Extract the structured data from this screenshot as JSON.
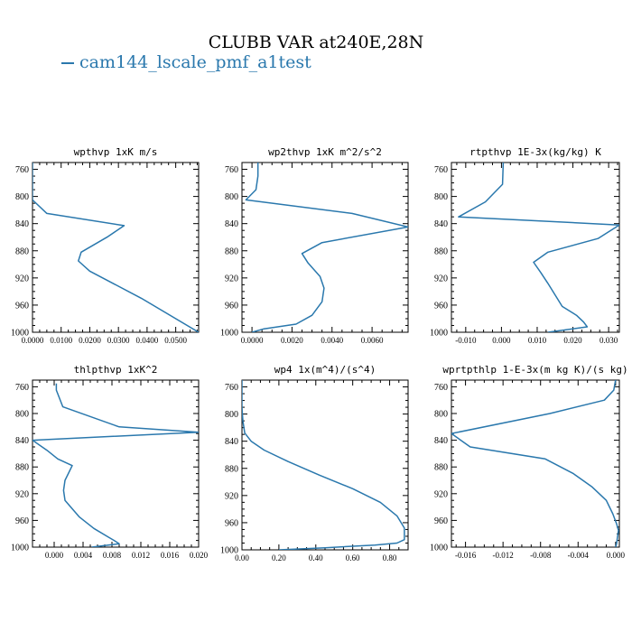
{
  "page": {
    "title": "CLUBB VAR at240E,28N",
    "legend_label": "cam144_lscale_pmf_a1test",
    "line_color": "#2a78ad"
  },
  "chart_data": [
    {
      "type": "line",
      "title": "wpthvp  1xK m/s",
      "xlim": [
        0,
        0.058
      ],
      "ylim": [
        1000,
        750
      ],
      "xticks": [
        "0.0000",
        "0.0100",
        "0.0200",
        "0.0300",
        "0.0400",
        "0.0500"
      ],
      "xtick_values": [
        0,
        0.01,
        0.02,
        0.03,
        0.04,
        0.05
      ],
      "yticks": [
        "760",
        "800",
        "840",
        "880",
        "920",
        "960",
        "1000"
      ],
      "ytick_values": [
        760,
        800,
        840,
        880,
        920,
        960,
        1000
      ],
      "series": [
        {
          "x": [
            0,
            0,
            0,
            0.005,
            0.032,
            0.026,
            0.017,
            0.016,
            0.02,
            0.038,
            0.058
          ],
          "y": [
            750,
            780,
            805,
            825,
            843,
            860,
            882,
            895,
            910,
            950,
            1000
          ]
        }
      ]
    },
    {
      "type": "line",
      "title": "wp2thvp  1xK m^2/s^2",
      "xlim": [
        -0.0005,
        0.0078
      ],
      "ylim": [
        1000,
        750
      ],
      "xticks": [
        "0.0000",
        "0.0020",
        "0.0040",
        "0.0060"
      ],
      "xtick_values": [
        0,
        0.002,
        0.004,
        0.006
      ],
      "yticks": [
        "760",
        "800",
        "840",
        "880",
        "920",
        "960",
        "1000"
      ],
      "ytick_values": [
        760,
        800,
        840,
        880,
        920,
        960,
        1000
      ],
      "series": [
        {
          "x": [
            0.0003,
            0.0003,
            0.0002,
            -0.0003,
            0.005,
            0.0078,
            0.0035,
            0.0025,
            0.0028,
            0.0034,
            0.0036,
            0.0035,
            0.003,
            0.0022,
            0.0006,
            0
          ],
          "y": [
            750,
            770,
            790,
            805,
            825,
            845,
            868,
            884,
            898,
            918,
            935,
            955,
            975,
            988,
            995,
            1000
          ]
        }
      ]
    },
    {
      "type": "line",
      "title": "rtpthvp  1E-3x(kg/kg) K",
      "xlim": [
        -0.014,
        0.033
      ],
      "ylim": [
        1000,
        750
      ],
      "xticks": [
        "-0.010",
        "0.000",
        "0.010",
        "0.020",
        "0.030"
      ],
      "xtick_values": [
        -0.01,
        0,
        0.01,
        0.02,
        0.03
      ],
      "yticks": [
        "760",
        "800",
        "840",
        "880",
        "920",
        "960",
        "1000"
      ],
      "ytick_values": [
        760,
        800,
        840,
        880,
        920,
        960,
        1000
      ],
      "series": [
        {
          "x": [
            0.0005,
            0.0003,
            -0.0045,
            -0.012,
            0.033,
            0.027,
            0.013,
            0.009,
            0.011,
            0.013,
            0.015,
            0.017,
            0.021,
            0.023,
            0.024,
            0.013
          ],
          "y": [
            750,
            782,
            808,
            830,
            842,
            862,
            882,
            897,
            912,
            928,
            945,
            962,
            975,
            985,
            992,
            1000
          ]
        }
      ]
    },
    {
      "type": "line",
      "title": "thlpthvp  1xK^2",
      "xlim": [
        -0.003,
        0.02
      ],
      "ylim": [
        1000,
        750
      ],
      "xticks": [
        "0.000",
        "0.004",
        "0.008",
        "0.012",
        "0.016",
        "0.020"
      ],
      "xtick_values": [
        0,
        0.004,
        0.008,
        0.012,
        0.016,
        0.02
      ],
      "yticks": [
        "760",
        "800",
        "840",
        "880",
        "920",
        "960",
        "1000"
      ],
      "ytick_values": [
        760,
        800,
        840,
        880,
        920,
        960,
        1000
      ],
      "series": [
        {
          "x": [
            0.0003,
            0.0003,
            0.0012,
            0.009,
            0.02,
            -0.003,
            -0.001,
            0.0005,
            0.0025,
            0.0015,
            0.0013,
            0.0015,
            0.0035,
            0.0055,
            0.0075,
            0.0083,
            0.009,
            0.0052
          ],
          "y": [
            755,
            765,
            790,
            820,
            828,
            840,
            855,
            868,
            878,
            900,
            915,
            930,
            955,
            972,
            985,
            990,
            995,
            1000
          ]
        }
      ]
    },
    {
      "type": "line",
      "title": "wp4  1x(m^4)/(s^4)",
      "xlim": [
        0,
        0.9
      ],
      "ylim": [
        1000,
        750
      ],
      "xticks": [
        "0.00",
        "0.20",
        "0.40",
        "0.60",
        "0.80"
      ],
      "xtick_values": [
        0,
        0.2,
        0.4,
        0.6,
        0.8
      ],
      "yticks": [
        "760",
        "800",
        "840",
        "880",
        "920",
        "960",
        "1000"
      ],
      "ytick_values": [
        760,
        800,
        840,
        880,
        920,
        960,
        1000
      ],
      "series": [
        {
          "x": [
            0,
            0,
            0.005,
            0.015,
            0.05,
            0.12,
            0.25,
            0.42,
            0.6,
            0.75,
            0.84,
            0.88,
            0.88,
            0.84,
            0.72,
            0.45,
            0.2
          ],
          "y": [
            750,
            790,
            810,
            828,
            840,
            853,
            870,
            890,
            910,
            930,
            950,
            968,
            985,
            990,
            993,
            997,
            1000
          ]
        }
      ]
    },
    {
      "type": "line",
      "title": "wprtpthlp  1-E-3x(m kg K)/(s kg)",
      "xlim": [
        -0.0175,
        0.0004
      ],
      "ylim": [
        1000,
        750
      ],
      "xticks": [
        "-0.016",
        "-0.012",
        "-0.008",
        "-0.004",
        "0.000"
      ],
      "xtick_values": [
        -0.016,
        -0.012,
        -0.008,
        -0.004,
        0
      ],
      "yticks": [
        "760",
        "800",
        "840",
        "880",
        "920",
        "960",
        "1000"
      ],
      "ytick_values": [
        760,
        800,
        840,
        880,
        920,
        960,
        1000
      ],
      "series": [
        {
          "x": [
            0,
            -0.0002,
            -0.0012,
            -0.007,
            -0.0175,
            -0.0155,
            -0.0075,
            -0.0045,
            -0.0025,
            -0.001,
            -0.0003,
            0.0001,
            0.0003,
            0.0002,
            0.0001,
            0
          ],
          "y": [
            750,
            765,
            780,
            800,
            830,
            850,
            868,
            890,
            910,
            930,
            950,
            965,
            975,
            985,
            995,
            1000
          ]
        }
      ]
    }
  ]
}
